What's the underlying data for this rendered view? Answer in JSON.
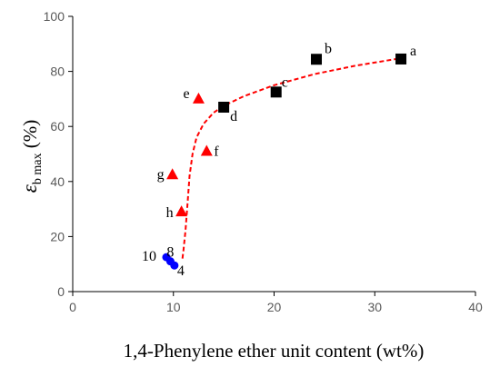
{
  "chart_data": {
    "type": "scatter",
    "xlabel": "1,4-Phenylene ether unit content (wt%)",
    "ylabel_main": "ε",
    "ylabel_sub": "b max",
    "ylabel_unit": " (%)",
    "xlim": [
      0,
      40
    ],
    "ylim": [
      0,
      100
    ],
    "x_ticks": [
      "0",
      "10",
      "20",
      "30",
      "40"
    ],
    "y_ticks": [
      "0",
      "20",
      "40",
      "60",
      "80",
      "100"
    ],
    "grid": false,
    "legend": "none",
    "colors": {
      "square": "#000000",
      "triangle": "#ff0000",
      "circle": "#0000ff",
      "trend": "#ff0000"
    },
    "series": [
      {
        "marker": "square",
        "points": [
          {
            "x": 32.6,
            "y": 84.5,
            "label": "a"
          },
          {
            "x": 24.2,
            "y": 84.4,
            "label": "b"
          },
          {
            "x": 20.2,
            "y": 72.5,
            "label": "c"
          },
          {
            "x": 15.0,
            "y": 67.0,
            "label": "d"
          }
        ]
      },
      {
        "marker": "triangle",
        "points": [
          {
            "x": 12.5,
            "y": 70.0,
            "label": "e"
          },
          {
            "x": 13.3,
            "y": 51.0,
            "label": "f"
          },
          {
            "x": 9.9,
            "y": 42.5,
            "label": "g"
          },
          {
            "x": 10.8,
            "y": 29.0,
            "label": "h"
          }
        ]
      },
      {
        "marker": "circle",
        "points": [
          {
            "x": 10.1,
            "y": 9.5,
            "label": "4"
          },
          {
            "x": 9.7,
            "y": 11.0,
            "label": "8"
          },
          {
            "x": 9.3,
            "y": 12.5,
            "label": "10"
          }
        ]
      }
    ],
    "trendline": [
      [
        10.9,
        12
      ],
      [
        11.0,
        15
      ],
      [
        11.2,
        22
      ],
      [
        11.4,
        32
      ],
      [
        11.6,
        42
      ],
      [
        11.9,
        50
      ],
      [
        12.3,
        56
      ],
      [
        13.0,
        61
      ],
      [
        14.0,
        65
      ],
      [
        15.0,
        67.5
      ],
      [
        17.0,
        71
      ],
      [
        20.0,
        75
      ],
      [
        24.0,
        79
      ],
      [
        28.0,
        82
      ],
      [
        32.6,
        84.8
      ]
    ]
  }
}
